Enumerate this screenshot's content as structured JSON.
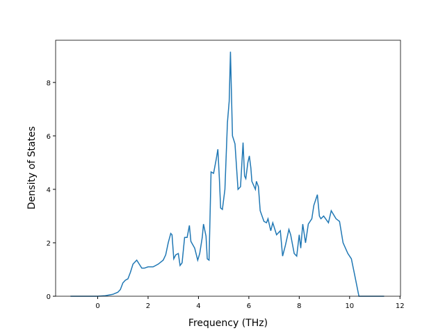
{
  "chart_data": {
    "type": "line",
    "x_label": "Frequency (THz)",
    "y_label": "Density of States",
    "xlim": [
      -1.67,
      12.02
    ],
    "ylim": [
      0,
      9.58
    ],
    "xticks": [
      0,
      2,
      4,
      6,
      8,
      10,
      12
    ],
    "yticks": [
      0,
      2,
      4,
      6,
      8
    ],
    "color": "#1f77b4",
    "x": [
      -1.08,
      0,
      0.3,
      0.6,
      0.8,
      0.9,
      1.0,
      1.1,
      1.2,
      1.3,
      1.4,
      1.55,
      1.65,
      1.75,
      1.85,
      2.0,
      2.2,
      2.4,
      2.6,
      2.7,
      2.8,
      2.9,
      2.95,
      3.02,
      3.1,
      3.2,
      3.27,
      3.35,
      3.45,
      3.55,
      3.64,
      3.7,
      3.85,
      3.97,
      4.05,
      4.15,
      4.2,
      4.3,
      4.35,
      4.42,
      4.5,
      4.6,
      4.7,
      4.77,
      4.83,
      4.88,
      4.95,
      5.05,
      5.15,
      5.22,
      5.27,
      5.35,
      5.45,
      5.57,
      5.67,
      5.77,
      5.83,
      5.88,
      5.96,
      6.02,
      6.08,
      6.12,
      6.26,
      6.3,
      6.38,
      6.45,
      6.6,
      6.7,
      6.76,
      6.87,
      6.95,
      7.1,
      7.25,
      7.34,
      7.45,
      7.59,
      7.66,
      7.8,
      7.9,
      8.0,
      8.06,
      8.14,
      8.25,
      8.36,
      8.5,
      8.58,
      8.72,
      8.8,
      8.86,
      8.97,
      9.16,
      9.27,
      9.46,
      9.6,
      9.74,
      9.93,
      10.07,
      10.2,
      10.37,
      11.37
    ],
    "values": [
      0,
      0,
      0.02,
      0.07,
      0.15,
      0.25,
      0.5,
      0.6,
      0.65,
      0.9,
      1.2,
      1.35,
      1.2,
      1.05,
      1.05,
      1.1,
      1.1,
      1.2,
      1.35,
      1.55,
      2.0,
      2.35,
      2.3,
      1.4,
      1.55,
      1.6,
      1.15,
      1.25,
      2.2,
      2.2,
      2.65,
      2.05,
      1.8,
      1.35,
      1.6,
      2.2,
      2.7,
      2.25,
      1.4,
      1.35,
      4.65,
      4.6,
      5.1,
      5.5,
      4.4,
      3.3,
      3.25,
      4.0,
      6.5,
      7.3,
      9.15,
      6.0,
      5.7,
      4.0,
      4.1,
      5.75,
      4.5,
      4.4,
      5.0,
      5.25,
      4.8,
      4.3,
      4.0,
      4.3,
      4.1,
      3.2,
      2.8,
      2.75,
      2.9,
      2.45,
      2.75,
      2.3,
      2.45,
      1.5,
      1.9,
      2.5,
      2.3,
      1.6,
      1.5,
      2.3,
      1.8,
      2.7,
      2.0,
      2.7,
      2.9,
      3.4,
      3.8,
      3.0,
      2.9,
      3.0,
      2.75,
      3.2,
      2.9,
      2.8,
      2.0,
      1.6,
      1.4,
      0.8,
      0,
      0
    ]
  }
}
